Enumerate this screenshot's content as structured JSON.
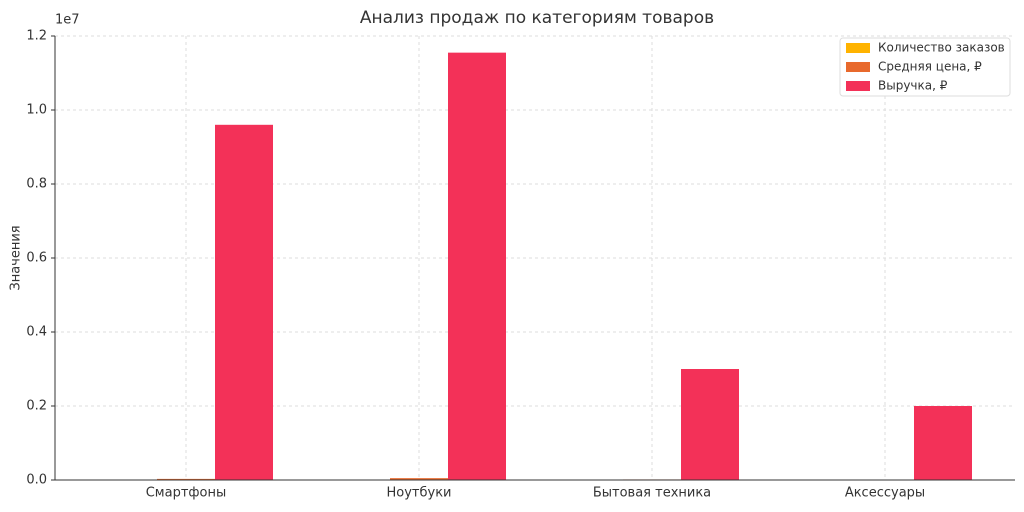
{
  "chart_data": {
    "type": "bar",
    "title": "Анализ продаж по категориям товаров",
    "y_label": "Значения",
    "y_offset_label": "1e7",
    "categories": [
      "Смартфоны",
      "Ноутбуки",
      "Бытовая техника",
      "Аксессуары"
    ],
    "series": [
      {
        "name": "Количество заказов",
        "color": "#ffb300",
        "values": [
          320,
          231,
          200,
          400
        ]
      },
      {
        "name": "Средняя цена, ₽",
        "color": "#e8692c",
        "values": [
          30000,
          50000,
          15000,
          5000
        ]
      },
      {
        "name": "Выручка, ₽",
        "color": "#f33158",
        "values": [
          9600000,
          11550000,
          3000000,
          2000000
        ]
      }
    ],
    "ylim": [
      0,
      12000000
    ],
    "yticks": [
      {
        "value": 0,
        "label": "0.0"
      },
      {
        "value": 2000000,
        "label": "0.2"
      },
      {
        "value": 4000000,
        "label": "0.4"
      },
      {
        "value": 6000000,
        "label": "0.6"
      },
      {
        "value": 8000000,
        "label": "0.8"
      },
      {
        "value": 10000000,
        "label": "1.0"
      },
      {
        "value": 12000000,
        "label": "1.2"
      }
    ],
    "grid": true,
    "legend": "upper-right"
  }
}
